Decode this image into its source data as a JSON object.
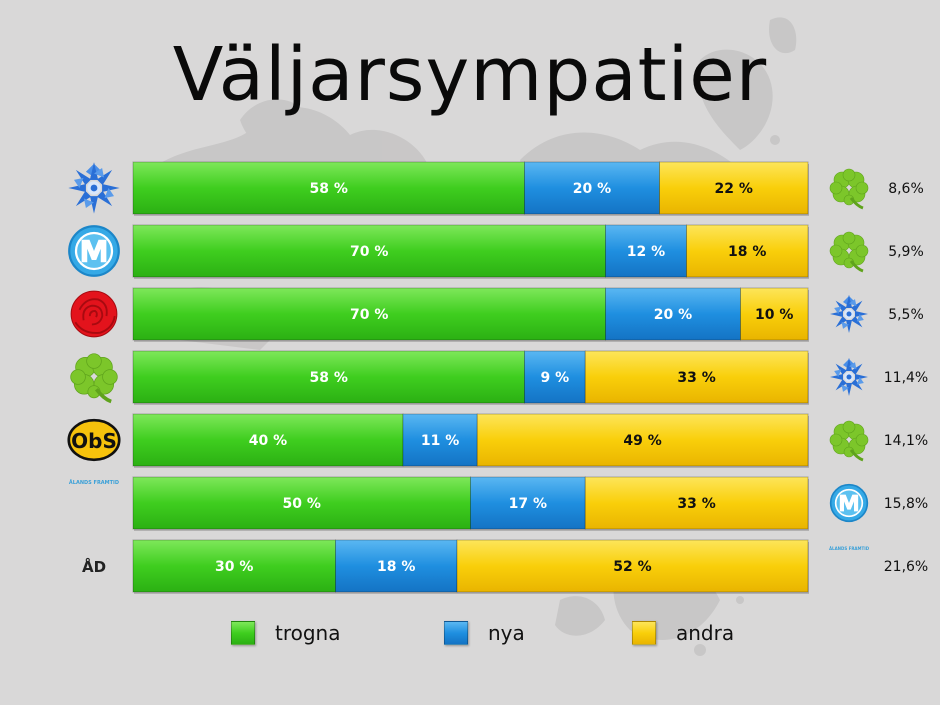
{
  "title": "Väljarsympatier",
  "colors": {
    "trogna": "#3fce1f",
    "nya": "#1f8fe0",
    "andra": "#f9cf0a",
    "background": "#d9d8d8"
  },
  "chart_data": {
    "type": "bar",
    "orientation": "horizontal",
    "stacked": true,
    "categories": [
      "cornflower",
      "m-logo",
      "rose",
      "clover",
      "obs",
      "alands-framtid",
      "ad-lifebuoy"
    ],
    "series": [
      {
        "name": "trogna",
        "values": [
          58,
          70,
          70,
          58,
          40,
          50,
          30
        ]
      },
      {
        "name": "nya",
        "values": [
          20,
          12,
          20,
          9,
          11,
          17,
          18
        ]
      },
      {
        "name": "andra",
        "values": [
          22,
          18,
          10,
          33,
          49,
          33,
          52
        ]
      }
    ],
    "segment_labels": [
      [
        "58 %",
        "20 %",
        "22 %"
      ],
      [
        "70 %",
        "12 %",
        "18 %"
      ],
      [
        "70 %",
        "20 %",
        "10 %"
      ],
      [
        "58 %",
        "9 %",
        "33 %"
      ],
      [
        "40 %",
        "11 %",
        "49 %"
      ],
      [
        "50 %",
        "17 %",
        "33 %"
      ],
      [
        "30 %",
        "18 %",
        "52 %"
      ]
    ],
    "right_column": [
      {
        "icon": "clover",
        "value": "8,6%"
      },
      {
        "icon": "clover",
        "value": "5,9%"
      },
      {
        "icon": "cornflower",
        "value": "5,5%"
      },
      {
        "icon": "cornflower",
        "value": "11,4%"
      },
      {
        "icon": "clover",
        "value": "14,1%"
      },
      {
        "icon": "m-logo",
        "value": "15,8%"
      },
      {
        "icon": "alands-framtid",
        "value": "21,6%"
      }
    ],
    "xlim": [
      0,
      100
    ],
    "legend": {
      "position": "bottom",
      "entries": [
        "trogna",
        "nya",
        "andra"
      ]
    }
  },
  "logos": {
    "obs_text": "ObS",
    "ad_text": "ÅD",
    "framtid_text": "ÅLANDS FRAMTID"
  }
}
